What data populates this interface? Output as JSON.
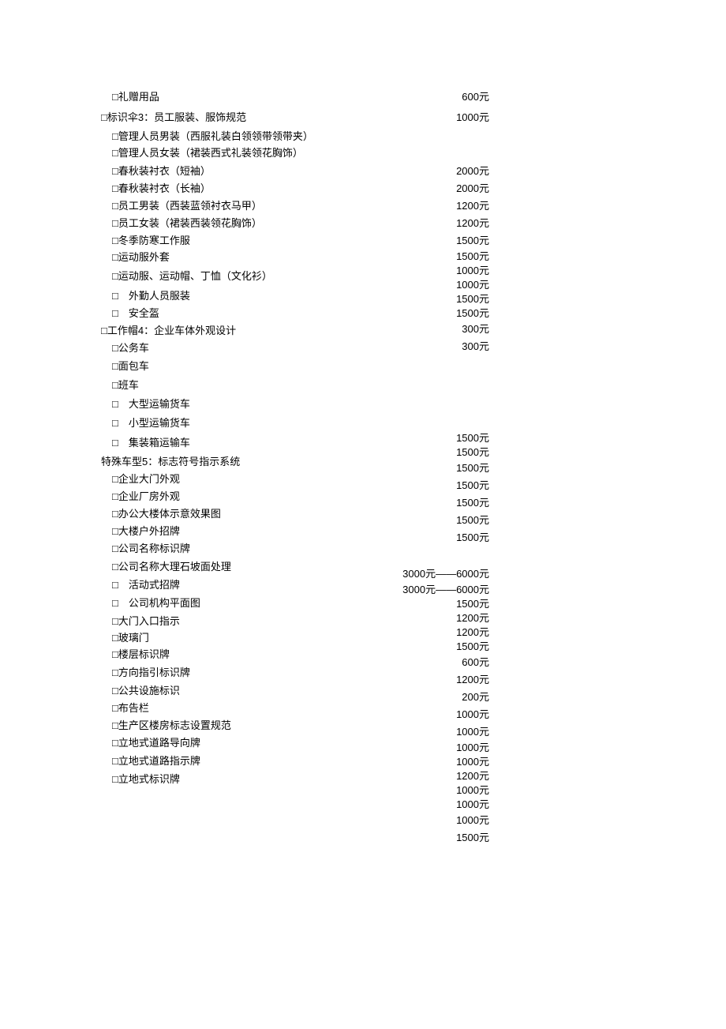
{
  "left": [
    {
      "text": "□礼赠用品",
      "indent": "indent-1"
    },
    {
      "text": "□标识伞3：员工服装、服饰规范",
      "indent": "indent-0"
    },
    {
      "text": "□管理人员男装（西服礼装白领领带领带夹）",
      "indent": "indent-1"
    },
    {
      "text": "□管理人员女装（裙装西式礼装领花胸饰）",
      "indent": "indent-1"
    },
    {
      "text": "□春秋装衬衣（短袖）",
      "indent": "indent-1"
    },
    {
      "text": "□春秋装衬衣（长袖）",
      "indent": "indent-1"
    },
    {
      "text": "□员工男装（西装蓝领衬衣马甲）",
      "indent": "indent-1"
    },
    {
      "text": "□员工女装（裙装西装领花胸饰）",
      "indent": "indent-1"
    },
    {
      "text": "□冬季防寒工作服",
      "indent": "indent-1"
    },
    {
      "text": "□运动服外套",
      "indent": "indent-1"
    },
    {
      "text": "□运动服、运动帽、丁恤（文化衫）",
      "indent": "indent-1"
    },
    {
      "text": "□　外勤人员服装",
      "indent": "indent-1"
    },
    {
      "text": "□　安全盔",
      "indent": "indent-1"
    },
    {
      "text": "□工作帽4：企业车体外观设计",
      "indent": "indent-0"
    },
    {
      "text": "□公务车",
      "indent": "indent-1"
    },
    {
      "text": "□面包车",
      "indent": "indent-1"
    },
    {
      "text": "□班车",
      "indent": "indent-1"
    },
    {
      "text": "□　大型运输货车",
      "indent": "indent-1"
    },
    {
      "text": "□　小型运输货车",
      "indent": "indent-1"
    },
    {
      "text": "□　集装箱运输车",
      "indent": "indent-1"
    },
    {
      "text": "特殊车型5：标志符号指示系统",
      "indent": "indent-0"
    },
    {
      "text": "□企业大门外观",
      "indent": "indent-1"
    },
    {
      "text": "□企业厂房外观",
      "indent": "indent-1"
    },
    {
      "text": "□办公大楼体示意效果图",
      "indent": "indent-1"
    },
    {
      "text": "□大楼户外招牌",
      "indent": "indent-1"
    },
    {
      "text": "□公司名称标识牌",
      "indent": "indent-1"
    },
    {
      "text": "□公司名称大理石坡面处理",
      "indent": "indent-1"
    },
    {
      "text": "□　活动式招牌",
      "indent": "indent-1"
    },
    {
      "text": "□　公司机构平面图",
      "indent": "indent-1"
    },
    {
      "text": "□大门入口指示",
      "indent": "indent-1"
    },
    {
      "text": "□玻璃门",
      "indent": "indent-1"
    },
    {
      "text": "□楼层标识牌",
      "indent": "indent-1"
    },
    {
      "text": "□方向指引标识牌",
      "indent": "indent-1"
    },
    {
      "text": "□公共设施标识",
      "indent": "indent-1"
    },
    {
      "text": "□布告栏",
      "indent": "indent-1"
    },
    {
      "text": "□生产区楼房标志设置规范",
      "indent": "indent-1"
    },
    {
      "text": "□立地式道路导向牌",
      "indent": "indent-1"
    },
    {
      "text": "□立地式道路指示牌",
      "indent": "indent-1"
    },
    {
      "text": "□立地式标识牌",
      "indent": "indent-1"
    }
  ],
  "right": [
    "600元",
    "1000元",
    "",
    "",
    "2000元",
    "2000元",
    "1200元",
    "1200元",
    "1500元",
    "1500元",
    "1000元",
    "1000元",
    "1500元",
    "1500元",
    "300元",
    "300元",
    "",
    "",
    "",
    "",
    "1500元",
    "1500元",
    "1500元",
    "1500元",
    "1500元",
    "1500元",
    "1500元",
    "",
    "3000元——6000元",
    "3000元——6000元",
    "1500元",
    "1200元",
    "1200元",
    "1500元",
    "600元",
    "1200元",
    "200元",
    "1000元",
    "1000元",
    "1000元",
    "1000元",
    "1200元",
    "1000元",
    "1000元",
    "1000元",
    "1500元"
  ],
  "left_row_heights": [
    22,
    30,
    18,
    24,
    22,
    22,
    22,
    22,
    22,
    20,
    28,
    22,
    22,
    22,
    22,
    24,
    24,
    24,
    24,
    26,
    22,
    22,
    22,
    22,
    22,
    22,
    24,
    22,
    24,
    22,
    20,
    22,
    24,
    22,
    22,
    22,
    22,
    24,
    22
  ],
  "right_row_heights": [
    22,
    30,
    18,
    24,
    22,
    22,
    22,
    22,
    22,
    18,
    18,
    18,
    18,
    18,
    22,
    22,
    24,
    24,
    24,
    24,
    18,
    18,
    22,
    22,
    22,
    22,
    22,
    24,
    22,
    18,
    18,
    18,
    18,
    18,
    22,
    22,
    22,
    22,
    22,
    18,
    18,
    18,
    18,
    18,
    22,
    22
  ]
}
